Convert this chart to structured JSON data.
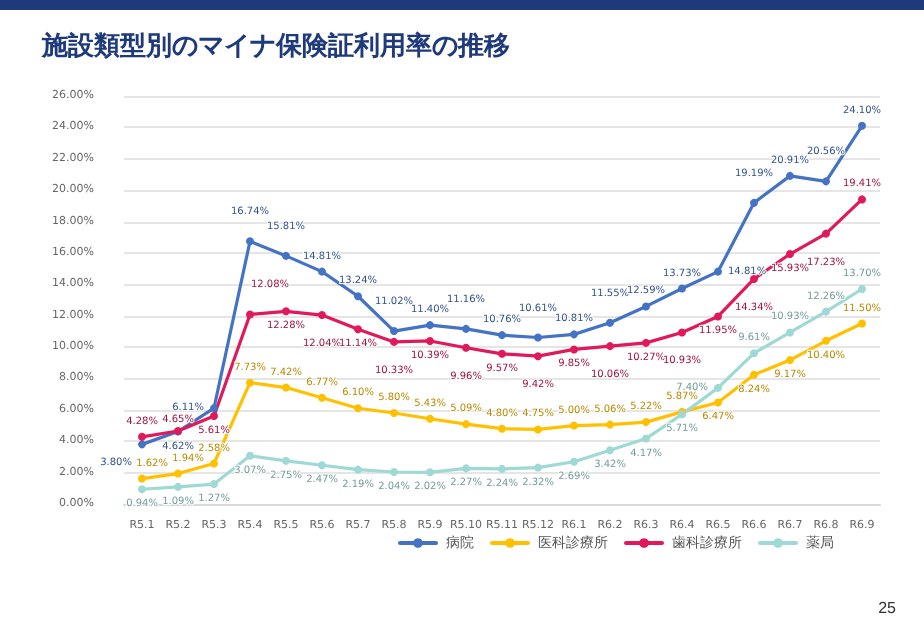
{
  "chart_data": {
    "type": "line",
    "title": "施設類型別のマイナ保険証利用率の推移",
    "annotations": [
      "25"
    ],
    "categories": [
      "R5.1",
      "R5.2",
      "R5.3",
      "R5.4",
      "R5.5",
      "R5.6",
      "R5.7",
      "R5.8",
      "R5.9",
      "R5.10",
      "R5.11",
      "R5.12",
      "R6.1",
      "R6.2",
      "R6.3",
      "R6.4",
      "R6.5",
      "R6.6",
      "R6.7",
      "R6.8",
      "R6.9"
    ],
    "series": [
      {
        "name": "病院",
        "color": "#4472c4",
        "values": [
          3.8,
          4.62,
          6.11,
          16.74,
          15.81,
          14.81,
          13.24,
          11.02,
          11.4,
          11.16,
          10.76,
          10.61,
          10.81,
          11.55,
          12.59,
          13.73,
          14.81,
          19.19,
          20.91,
          20.56,
          24.1
        ],
        "value_labels": [
          "3.80%",
          "4.62%",
          "6.11%",
          "16.74%",
          "15.81%",
          "14.81%",
          "13.24%",
          "11.02%",
          "11.40%",
          "11.16%",
          "10.76%",
          "10.61%",
          "10.81%",
          "11.55%",
          "12.59%",
          "13.73%",
          "14.81%",
          "19.19%",
          "20.91%",
          "20.56%",
          "24.10%"
        ]
      },
      {
        "name": "医科診療所",
        "color": "#ffc000",
        "values": [
          1.62,
          1.94,
          2.58,
          7.73,
          7.42,
          6.77,
          6.1,
          5.8,
          5.43,
          5.09,
          4.8,
          4.75,
          5.0,
          5.06,
          5.22,
          5.87,
          6.47,
          8.24,
          9.17,
          10.4,
          11.5
        ],
        "value_labels": [
          "1.62%",
          "1.94%",
          "2.58%",
          "7.73%",
          "7.42%",
          "6.77%",
          "6.10%",
          "5.80%",
          "5.43%",
          "5.09%",
          "4.80%",
          "4.75%",
          "5.00%",
          "5.06%",
          "5.22%",
          "5.87%",
          "6.47%",
          "8.24%",
          "9.17%",
          "10.40%",
          "11.50%"
        ]
      },
      {
        "name": "歯科診療所",
        "color": "#e0195a",
        "values": [
          4.28,
          4.65,
          5.61,
          12.08,
          12.28,
          12.04,
          11.14,
          10.33,
          10.39,
          9.96,
          9.57,
          9.42,
          9.85,
          10.06,
          10.27,
          10.93,
          11.95,
          14.34,
          15.93,
          17.23,
          19.41
        ],
        "value_labels": [
          "4.28%",
          "4.65%",
          "5.61%",
          "12.08%",
          "12.28%",
          "12.04%",
          "11.14%",
          "10.33%",
          "10.39%",
          "9.96%",
          "9.57%",
          "9.42%",
          "9.85%",
          "10.06%",
          "10.27%",
          "10.93%",
          "11.95%",
          "14.34%",
          "15.93%",
          "17.23%",
          "19.41%"
        ]
      },
      {
        "name": "薬局",
        "color": "#9fd9d6",
        "values": [
          0.94,
          1.09,
          1.27,
          3.07,
          2.75,
          2.47,
          2.19,
          2.04,
          2.02,
          2.27,
          2.24,
          2.32,
          2.69,
          3.42,
          4.17,
          5.71,
          7.4,
          9.61,
          10.93,
          12.26,
          13.7
        ],
        "value_labels": [
          "0.94%",
          "1.09%",
          "1.27%",
          "3.07%",
          "2.75%",
          "2.47%",
          "2.19%",
          "2.04%",
          "2.02%",
          "2.27%",
          "2.24%",
          "2.32%",
          "2.69%",
          "3.42%",
          "4.17%",
          "5.71%",
          "7.40%",
          "9.61%",
          "10.93%",
          "12.26%",
          "13.70%"
        ]
      }
    ],
    "ylim": [
      0,
      26
    ],
    "yticks": [
      {
        "value": 0,
        "label": "0.00%"
      },
      {
        "value": 2,
        "label": "2.00%"
      },
      {
        "value": 4,
        "label": "4.00%"
      },
      {
        "value": 6,
        "label": "6.00%"
      },
      {
        "value": 8,
        "label": "8.00%"
      },
      {
        "value": 10,
        "label": "10.00%"
      },
      {
        "value": 12,
        "label": "12.00%"
      },
      {
        "value": 14,
        "label": "14.00%"
      },
      {
        "value": 16,
        "label": "16.00%"
      },
      {
        "value": 18,
        "label": "18.00%"
      },
      {
        "value": 20,
        "label": "20.00%"
      },
      {
        "value": 22,
        "label": "22.00%"
      },
      {
        "value": 24,
        "label": "24.00%"
      },
      {
        "value": 26,
        "label": "26.00%"
      }
    ],
    "grid": "y",
    "legend": "bottom right",
    "marker": "circle",
    "line_style": "solid"
  }
}
